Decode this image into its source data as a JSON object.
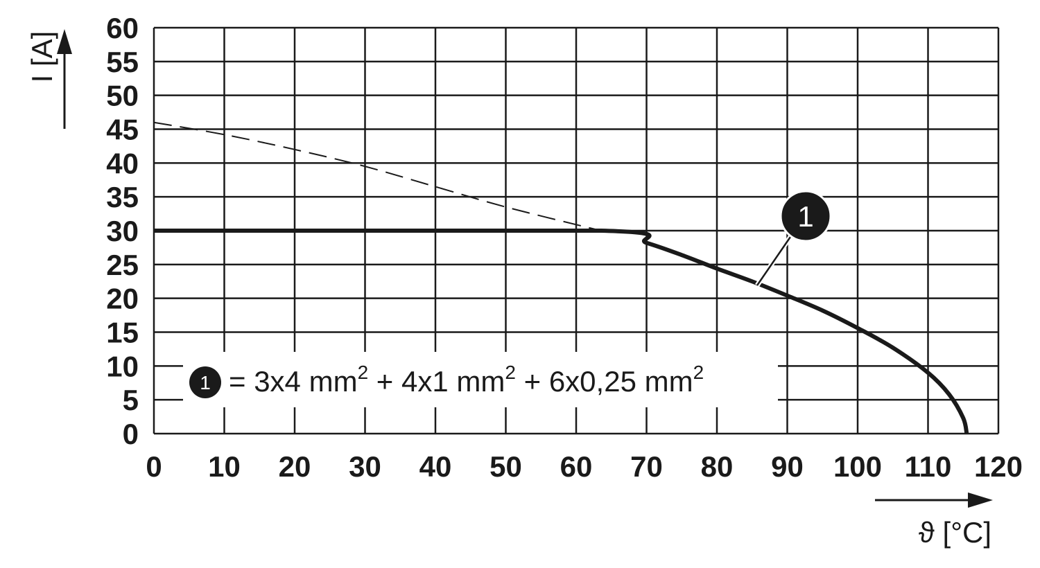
{
  "chart_data": {
    "type": "line",
    "xlabel": "ϑ [°C]",
    "ylabel": "I [A]",
    "xlim": [
      0,
      120
    ],
    "ylim": [
      0,
      60
    ],
    "xticks": [
      0,
      10,
      20,
      30,
      40,
      50,
      60,
      70,
      80,
      90,
      100,
      110,
      120
    ],
    "yticks": [
      0,
      5,
      10,
      15,
      20,
      25,
      30,
      35,
      40,
      45,
      50,
      55,
      60
    ],
    "grid": true,
    "series": [
      {
        "color": "#1a1a1a",
        "style": "solid",
        "x": [
          0,
          63.5,
          70,
          75,
          80,
          85,
          90,
          95,
          100,
          105,
          110,
          113,
          115,
          115.5
        ],
        "values": [
          30,
          30,
          28.2,
          26.4,
          24.4,
          22.5,
          20.4,
          18.2,
          15.6,
          12.7,
          9.0,
          5.8,
          2.3,
          0
        ]
      },
      {
        "color": "#1a1a1a",
        "style": "dashed",
        "x": [
          0,
          10,
          20,
          30,
          40,
          50,
          63.5
        ],
        "values": [
          46,
          44.2,
          42,
          39.5,
          36.5,
          33.5,
          30
        ]
      }
    ],
    "annotation": {
      "label": "1"
    },
    "legend": {
      "marker": "1",
      "text": [
        "= 3x4 mm",
        "2",
        " + 4x1 mm",
        "2",
        " + 6x0,25 mm",
        "2"
      ]
    }
  }
}
